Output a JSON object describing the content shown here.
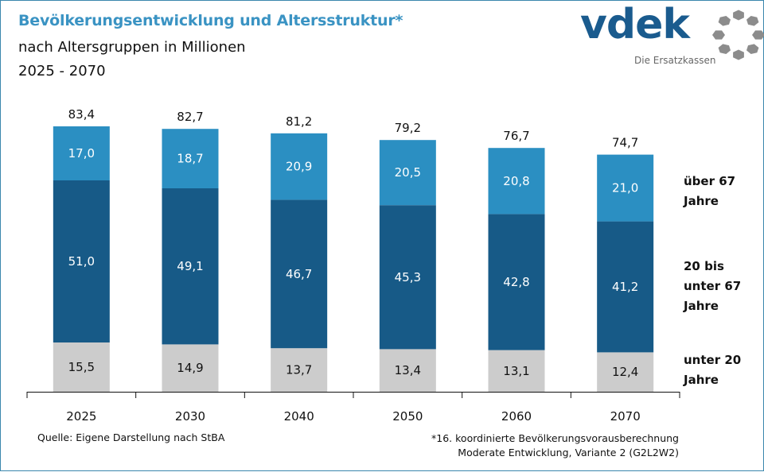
{
  "header": {
    "title": "Bevölkerungsentwicklung und Altersstruktur*",
    "subtitle": "nach Altersgruppen  in Millionen",
    "period": "2025 - 2070"
  },
  "logo": {
    "word": "vdek",
    "tagline": "Die Ersatzkassen"
  },
  "colors": {
    "title": "#3a93c3",
    "over67": "#2b8fc2",
    "age20to67": "#175a87",
    "under20": "#cccccc",
    "logo_blue": "#1a5b8e",
    "logo_gray": "#8c8c8c"
  },
  "footer": {
    "source": "Quelle: Eigene Darstellung nach StBA",
    "footnote_line1": "*16. koordinierte Bevölkerungsvorausberechnung",
    "footnote_line2": "Moderate Entwicklung, Variante 2 (G2L2W2)"
  },
  "chart_data": {
    "type": "bar",
    "stacked": true,
    "title": "Bevölkerungsentwicklung und Altersstruktur*",
    "subtitle": "nach Altersgruppen  in Millionen",
    "xlabel": "",
    "ylabel": "",
    "unit": "Millionen",
    "categories": [
      "2025",
      "2030",
      "2040",
      "2050",
      "2060",
      "2070"
    ],
    "totals": [
      "83,4",
      "82,7",
      "81,2",
      "79,2",
      "76,7",
      "74,7"
    ],
    "series": [
      {
        "name": "unter 20 Jahre",
        "legend": "unter 20\nJahre",
        "values": [
          15.5,
          14.9,
          13.7,
          13.4,
          13.1,
          12.4
        ],
        "labels": [
          "15,5",
          "14,9",
          "13,7",
          "13,4",
          "13,1",
          "12,4"
        ]
      },
      {
        "name": "20 bis unter 67 Jahre",
        "legend": "20 bis\nunter 67\nJahre",
        "values": [
          51.0,
          49.1,
          46.7,
          45.3,
          42.8,
          41.2
        ],
        "labels": [
          "51,0",
          "49,1",
          "46,7",
          "45,3",
          "42,8",
          "41,2"
        ]
      },
      {
        "name": "über 67 Jahre",
        "legend": "über 67\nJahre",
        "values": [
          17.0,
          18.7,
          20.9,
          20.5,
          20.8,
          21.0
        ],
        "labels": [
          "17,0",
          "18,7",
          "20,9",
          "20,5",
          "20,8",
          "21,0"
        ]
      }
    ],
    "ylim": [
      0,
      90
    ],
    "grid": false,
    "legend_position": "right"
  }
}
